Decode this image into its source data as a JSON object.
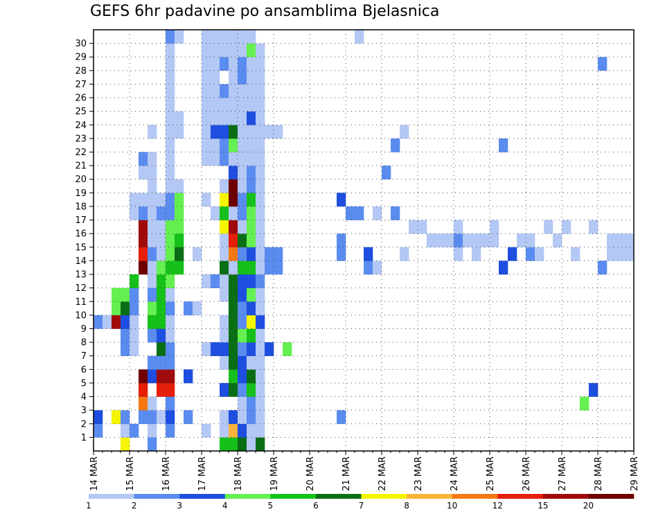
{
  "chart_data": {
    "type": "heatmap",
    "title": "GEFS 6hr padavine po ansamblima Bjelasnica",
    "xlabel": "",
    "ylabel": "",
    "y_ticks": [
      "1",
      "2",
      "3",
      "4",
      "5",
      "6",
      "7",
      "8",
      "9",
      "10",
      "11",
      "12",
      "13",
      "14",
      "15",
      "16",
      "17",
      "18",
      "19",
      "20",
      "21",
      "22",
      "23",
      "24",
      "25",
      "26",
      "27",
      "28",
      "29",
      "30"
    ],
    "x_ticks": [
      "14 MAR",
      "15 MAR",
      "16 MAR",
      "17 MAR",
      "18 MAR",
      "19 MAR",
      "20 MAR",
      "21 MAR",
      "22 MAR",
      "23 MAR",
      "24 MAR",
      "25 MAR",
      "26 MAR",
      "27 MAR",
      "28 MAR",
      "29 MAR"
    ],
    "steps_per_day": 4,
    "n_steps": 60,
    "n_members": 31,
    "grid": "dotted",
    "colorbar": {
      "labels": [
        "1",
        "2",
        "3",
        "4",
        "5",
        "6",
        "7",
        "8",
        "10",
        "12",
        "15",
        "20"
      ],
      "colors": [
        "#b4c8f5",
        "#5a8cf0",
        "#1e4ee0",
        "#64f050",
        "#16c01a",
        "#0a6e14",
        "#f5f500",
        "#fab43c",
        "#f57814",
        "#e61e0a",
        "#a00a0a",
        "#6e0000"
      ]
    },
    "cells": [
      [
        0,
        1,
        2
      ],
      [
        0,
        2,
        3
      ],
      [
        0,
        9,
        2
      ],
      [
        1,
        9,
        1
      ],
      [
        2,
        2,
        7
      ],
      [
        2,
        9,
        11
      ],
      [
        2,
        10,
        4
      ],
      [
        2,
        11,
        4
      ],
      [
        3,
        0,
        7
      ],
      [
        3,
        1,
        1
      ],
      [
        3,
        2,
        2
      ],
      [
        3,
        7,
        2
      ],
      [
        3,
        8,
        2
      ],
      [
        3,
        9,
        3
      ],
      [
        3,
        10,
        6
      ],
      [
        3,
        11,
        4
      ],
      [
        4,
        1,
        2
      ],
      [
        4,
        7,
        1
      ],
      [
        4,
        8,
        1
      ],
      [
        4,
        9,
        1
      ],
      [
        4,
        10,
        2
      ],
      [
        4,
        11,
        2
      ],
      [
        4,
        12,
        5
      ],
      [
        4,
        17,
        1
      ],
      [
        4,
        18,
        1
      ],
      [
        5,
        2,
        2
      ],
      [
        5,
        3,
        9
      ],
      [
        5,
        4,
        10
      ],
      [
        5,
        5,
        12
      ],
      [
        5,
        13,
        12
      ],
      [
        5,
        14,
        10
      ],
      [
        5,
        15,
        11
      ],
      [
        5,
        16,
        11
      ],
      [
        5,
        17,
        2
      ],
      [
        5,
        18,
        1
      ],
      [
        5,
        20,
        1
      ],
      [
        5,
        21,
        2
      ],
      [
        6,
        0,
        2
      ],
      [
        6,
        1,
        1
      ],
      [
        6,
        2,
        2
      ],
      [
        6,
        3,
        1
      ],
      [
        6,
        5,
        3
      ],
      [
        6,
        6,
        2
      ],
      [
        6,
        8,
        2
      ],
      [
        6,
        9,
        5
      ],
      [
        6,
        10,
        4
      ],
      [
        6,
        11,
        2
      ],
      [
        6,
        12,
        1
      ],
      [
        6,
        13,
        1
      ],
      [
        6,
        14,
        2
      ],
      [
        6,
        15,
        1
      ],
      [
        6,
        16,
        1
      ],
      [
        6,
        17,
        1
      ],
      [
        6,
        18,
        1
      ],
      [
        6,
        19,
        1
      ],
      [
        6,
        20,
        1
      ],
      [
        6,
        21,
        1
      ],
      [
        6,
        23,
        1
      ],
      [
        7,
        2,
        1
      ],
      [
        7,
        4,
        10
      ],
      [
        7,
        5,
        11
      ],
      [
        7,
        6,
        2
      ],
      [
        7,
        7,
        6
      ],
      [
        7,
        8,
        3
      ],
      [
        7,
        9,
        5
      ],
      [
        7,
        10,
        5
      ],
      [
        7,
        11,
        5
      ],
      [
        7,
        12,
        5
      ],
      [
        7,
        13,
        4
      ],
      [
        7,
        14,
        1
      ],
      [
        7,
        15,
        1
      ],
      [
        7,
        16,
        1
      ],
      [
        7,
        17,
        2
      ],
      [
        7,
        18,
        1
      ],
      [
        8,
        1,
        2
      ],
      [
        8,
        2,
        3
      ],
      [
        8,
        3,
        2
      ],
      [
        8,
        4,
        10
      ],
      [
        8,
        5,
        11
      ],
      [
        8,
        6,
        2
      ],
      [
        8,
        7,
        2
      ],
      [
        8,
        8,
        1
      ],
      [
        8,
        9,
        1
      ],
      [
        8,
        10,
        2
      ],
      [
        8,
        11,
        1
      ],
      [
        8,
        12,
        4
      ],
      [
        8,
        13,
        5
      ],
      [
        8,
        14,
        4
      ],
      [
        8,
        15,
        4
      ],
      [
        8,
        16,
        4
      ],
      [
        8,
        17,
        2
      ],
      [
        8,
        18,
        2
      ],
      [
        8,
        19,
        1
      ],
      [
        8,
        20,
        1
      ],
      [
        8,
        21,
        1
      ],
      [
        8,
        22,
        1
      ],
      [
        8,
        23,
        1
      ],
      [
        8,
        24,
        1
      ],
      [
        8,
        25,
        1
      ],
      [
        8,
        26,
        1
      ],
      [
        8,
        27,
        1
      ],
      [
        8,
        28,
        1
      ],
      [
        8,
        29,
        1
      ],
      [
        8,
        30,
        2
      ],
      [
        9,
        13,
        5
      ],
      [
        9,
        14,
        6
      ],
      [
        9,
        15,
        5
      ],
      [
        9,
        16,
        4
      ],
      [
        9,
        17,
        4
      ],
      [
        9,
        18,
        4
      ],
      [
        9,
        19,
        1
      ],
      [
        9,
        23,
        1
      ],
      [
        9,
        24,
        1
      ],
      [
        9,
        30,
        1
      ],
      [
        10,
        2,
        2
      ],
      [
        10,
        5,
        3
      ],
      [
        10,
        10,
        2
      ],
      [
        11,
        10,
        1
      ],
      [
        11,
        14,
        1
      ],
      [
        12,
        1,
        1
      ],
      [
        12,
        7,
        1
      ],
      [
        12,
        12,
        1
      ],
      [
        12,
        18,
        1
      ],
      [
        12,
        21,
        1
      ],
      [
        12,
        22,
        1
      ],
      [
        12,
        23,
        1
      ],
      [
        12,
        24,
        1
      ],
      [
        12,
        25,
        1
      ],
      [
        12,
        26,
        1
      ],
      [
        12,
        27,
        1
      ],
      [
        12,
        28,
        1
      ],
      [
        12,
        29,
        1
      ],
      [
        12,
        30,
        1
      ],
      [
        13,
        7,
        3
      ],
      [
        13,
        12,
        2
      ],
      [
        13,
        17,
        1
      ],
      [
        13,
        21,
        1
      ],
      [
        13,
        22,
        1
      ],
      [
        13,
        23,
        3
      ],
      [
        13,
        24,
        1
      ],
      [
        13,
        25,
        1
      ],
      [
        13,
        26,
        1
      ],
      [
        13,
        27,
        1
      ],
      [
        13,
        28,
        1
      ],
      [
        13,
        29,
        1
      ],
      [
        13,
        30,
        1
      ],
      [
        14,
        0,
        5
      ],
      [
        14,
        1,
        1
      ],
      [
        14,
        2,
        1
      ],
      [
        14,
        4,
        3
      ],
      [
        14,
        6,
        1
      ],
      [
        14,
        7,
        3
      ],
      [
        14,
        8,
        1
      ],
      [
        14,
        9,
        1
      ],
      [
        14,
        11,
        1
      ],
      [
        14,
        12,
        1
      ],
      [
        14,
        13,
        6
      ],
      [
        14,
        14,
        1
      ],
      [
        14,
        15,
        1
      ],
      [
        14,
        16,
        7
      ],
      [
        14,
        17,
        5
      ],
      [
        14,
        18,
        7
      ],
      [
        14,
        19,
        1
      ],
      [
        14,
        21,
        2
      ],
      [
        14,
        22,
        2
      ],
      [
        14,
        23,
        3
      ],
      [
        14,
        24,
        1
      ],
      [
        14,
        25,
        1
      ],
      [
        14,
        26,
        2
      ],
      [
        14,
        28,
        2
      ],
      [
        14,
        29,
        1
      ],
      [
        14,
        30,
        1
      ],
      [
        15,
        0,
        5
      ],
      [
        15,
        1,
        8
      ],
      [
        15,
        2,
        3
      ],
      [
        15,
        4,
        6
      ],
      [
        15,
        5,
        5
      ],
      [
        15,
        6,
        6
      ],
      [
        15,
        7,
        6
      ],
      [
        15,
        8,
        6
      ],
      [
        15,
        9,
        6
      ],
      [
        15,
        10,
        6
      ],
      [
        15,
        11,
        6
      ],
      [
        15,
        12,
        6
      ],
      [
        15,
        13,
        1
      ],
      [
        15,
        14,
        9
      ],
      [
        15,
        15,
        10
      ],
      [
        15,
        16,
        11
      ],
      [
        15,
        17,
        1
      ],
      [
        15,
        18,
        12
      ],
      [
        15,
        19,
        12
      ],
      [
        15,
        20,
        3
      ],
      [
        15,
        21,
        1
      ],
      [
        15,
        22,
        4
      ],
      [
        15,
        23,
        6
      ],
      [
        15,
        24,
        1
      ],
      [
        15,
        25,
        1
      ],
      [
        15,
        26,
        1
      ],
      [
        15,
        27,
        1
      ],
      [
        15,
        28,
        1
      ],
      [
        15,
        29,
        1
      ],
      [
        15,
        30,
        1
      ],
      [
        16,
        0,
        6
      ],
      [
        16,
        1,
        3
      ],
      [
        16,
        2,
        1
      ],
      [
        16,
        3,
        1
      ],
      [
        16,
        4,
        2
      ],
      [
        16,
        5,
        3
      ],
      [
        16,
        6,
        3
      ],
      [
        16,
        7,
        2
      ],
      [
        16,
        8,
        4
      ],
      [
        16,
        9,
        2
      ],
      [
        16,
        10,
        2
      ],
      [
        16,
        11,
        3
      ],
      [
        16,
        12,
        3
      ],
      [
        16,
        13,
        5
      ],
      [
        16,
        14,
        2
      ],
      [
        16,
        15,
        6
      ],
      [
        16,
        16,
        1
      ],
      [
        16,
        17,
        2
      ],
      [
        16,
        18,
        2
      ],
      [
        16,
        19,
        1
      ],
      [
        16,
        20,
        1
      ],
      [
        16,
        21,
        1
      ],
      [
        16,
        22,
        1
      ],
      [
        16,
        23,
        1
      ],
      [
        16,
        24,
        1
      ],
      [
        16,
        25,
        1
      ],
      [
        16,
        26,
        1
      ],
      [
        16,
        27,
        2
      ],
      [
        16,
        28,
        2
      ],
      [
        16,
        29,
        1
      ],
      [
        16,
        30,
        1
      ],
      [
        17,
        0,
        1
      ],
      [
        17,
        1,
        1
      ],
      [
        17,
        2,
        2
      ],
      [
        17,
        3,
        2
      ],
      [
        17,
        4,
        5
      ],
      [
        17,
        5,
        6
      ],
      [
        17,
        6,
        1
      ],
      [
        17,
        7,
        3
      ],
      [
        17,
        8,
        5
      ],
      [
        17,
        9,
        7
      ],
      [
        17,
        10,
        3
      ],
      [
        17,
        11,
        4
      ],
      [
        17,
        12,
        3
      ],
      [
        17,
        13,
        5
      ],
      [
        17,
        14,
        3
      ],
      [
        17,
        15,
        4
      ],
      [
        17,
        16,
        4
      ],
      [
        17,
        17,
        4
      ],
      [
        17,
        18,
        5
      ],
      [
        17,
        19,
        2
      ],
      [
        17,
        20,
        2
      ],
      [
        17,
        21,
        1
      ],
      [
        17,
        22,
        1
      ],
      [
        17,
        23,
        1
      ],
      [
        17,
        24,
        3
      ],
      [
        17,
        25,
        1
      ],
      [
        17,
        26,
        1
      ],
      [
        17,
        27,
        1
      ],
      [
        17,
        28,
        1
      ],
      [
        17,
        29,
        4
      ],
      [
        17,
        30,
        1
      ],
      [
        18,
        0,
        6
      ],
      [
        18,
        1,
        1
      ],
      [
        18,
        2,
        1
      ],
      [
        18,
        3,
        1
      ],
      [
        18,
        4,
        1
      ],
      [
        18,
        5,
        1
      ],
      [
        18,
        6,
        1
      ],
      [
        18,
        7,
        1
      ],
      [
        18,
        8,
        1
      ],
      [
        18,
        9,
        3
      ],
      [
        18,
        10,
        1
      ],
      [
        18,
        11,
        1
      ],
      [
        18,
        12,
        2
      ],
      [
        18,
        13,
        1
      ],
      [
        18,
        14,
        1
      ],
      [
        18,
        15,
        1
      ],
      [
        18,
        16,
        1
      ],
      [
        18,
        17,
        1
      ],
      [
        18,
        18,
        1
      ],
      [
        18,
        19,
        1
      ],
      [
        18,
        20,
        1
      ],
      [
        18,
        21,
        1
      ],
      [
        18,
        22,
        1
      ],
      [
        18,
        23,
        1
      ],
      [
        18,
        24,
        1
      ],
      [
        18,
        25,
        1
      ],
      [
        18,
        26,
        1
      ],
      [
        18,
        27,
        1
      ],
      [
        18,
        28,
        1
      ],
      [
        18,
        29,
        1
      ],
      [
        19,
        7,
        3
      ],
      [
        19,
        13,
        2
      ],
      [
        19,
        14,
        2
      ],
      [
        19,
        23,
        1
      ],
      [
        20,
        13,
        2
      ],
      [
        20,
        14,
        2
      ],
      [
        20,
        23,
        1
      ],
      [
        21,
        7,
        4
      ],
      [
        27,
        2,
        2
      ],
      [
        27,
        14,
        2
      ],
      [
        27,
        15,
        2
      ],
      [
        27,
        18,
        3
      ],
      [
        28,
        17,
        2
      ],
      [
        29,
        17,
        2
      ],
      [
        29,
        30,
        1
      ],
      [
        30,
        13,
        2
      ],
      [
        30,
        14,
        3
      ],
      [
        31,
        13,
        1
      ],
      [
        31,
        17,
        1
      ],
      [
        32,
        20,
        2
      ],
      [
        33,
        22,
        2
      ],
      [
        33,
        17,
        2
      ],
      [
        34,
        14,
        1
      ],
      [
        34,
        23,
        1
      ],
      [
        35,
        16,
        1
      ],
      [
        36,
        16,
        1
      ],
      [
        37,
        15,
        1
      ],
      [
        38,
        15,
        1
      ],
      [
        39,
        15,
        1
      ],
      [
        40,
        14,
        1
      ],
      [
        40,
        15,
        2
      ],
      [
        40,
        16,
        1
      ],
      [
        41,
        15,
        1
      ],
      [
        42,
        14,
        1
      ],
      [
        42,
        15,
        1
      ],
      [
        43,
        15,
        1
      ],
      [
        44,
        15,
        1
      ],
      [
        44,
        16,
        1
      ],
      [
        45,
        13,
        3
      ],
      [
        45,
        22,
        2
      ],
      [
        46,
        14,
        3
      ],
      [
        47,
        15,
        1
      ],
      [
        48,
        14,
        2
      ],
      [
        48,
        15,
        1
      ],
      [
        49,
        14,
        1
      ],
      [
        50,
        16,
        1
      ],
      [
        51,
        15,
        1
      ],
      [
        52,
        16,
        1
      ],
      [
        53,
        14,
        1
      ],
      [
        54,
        3,
        4
      ],
      [
        55,
        4,
        3
      ],
      [
        55,
        16,
        1
      ],
      [
        56,
        13,
        2
      ],
      [
        56,
        28,
        2
      ],
      [
        57,
        14,
        1
      ],
      [
        57,
        15,
        1
      ],
      [
        58,
        14,
        1
      ],
      [
        58,
        15,
        1
      ],
      [
        59,
        14,
        1
      ],
      [
        59,
        15,
        1
      ]
    ]
  }
}
